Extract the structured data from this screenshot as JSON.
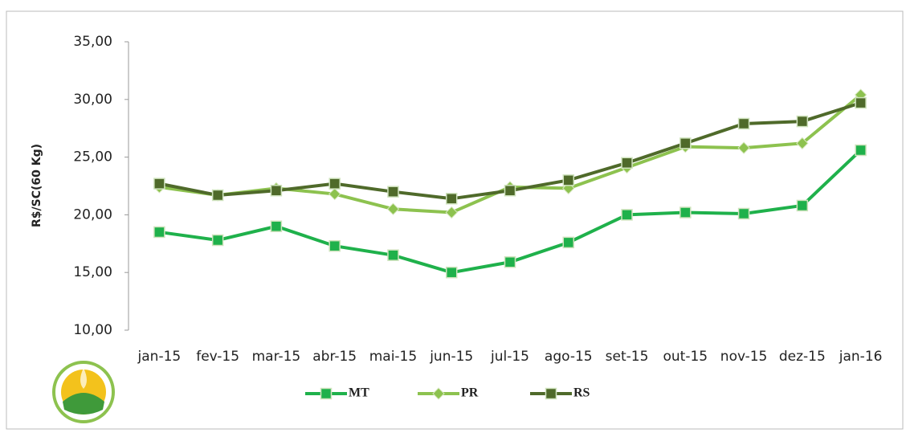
{
  "chart_data": {
    "type": "line",
    "y_label": "R$/SC(60 Kg)",
    "categories": [
      "jan-15",
      "fev-15",
      "mar-15",
      "abr-15",
      "mai-15",
      "jun-15",
      "jul-15",
      "ago-15",
      "set-15",
      "out-15",
      "nov-15",
      "dez-15",
      "jan-16"
    ],
    "series": [
      {
        "name": "MT",
        "color": "#1fb14b",
        "marker": "square",
        "values": [
          18.5,
          17.8,
          19.0,
          17.3,
          16.5,
          15.0,
          15.9,
          17.6,
          20.0,
          20.2,
          20.1,
          20.8,
          25.6
        ]
      },
      {
        "name": "PR",
        "color": "#8dc24f",
        "marker": "diamond",
        "values": [
          22.4,
          21.7,
          22.3,
          21.8,
          20.5,
          20.2,
          22.4,
          22.3,
          24.1,
          25.9,
          25.8,
          26.2,
          30.4
        ]
      },
      {
        "name": "RS",
        "color": "#4f6a2a",
        "marker": "square",
        "values": [
          22.7,
          21.7,
          22.1,
          22.7,
          22.0,
          21.4,
          22.1,
          23.0,
          24.5,
          26.2,
          27.9,
          28.1,
          29.7
        ]
      }
    ],
    "ylim": [
      10,
      35
    ],
    "yticks": [
      {
        "value": 10,
        "label": "10,00"
      },
      {
        "value": 15,
        "label": "15,00"
      },
      {
        "value": 20,
        "label": "20,00"
      },
      {
        "value": 25,
        "label": "25,00"
      },
      {
        "value": 30,
        "label": "30,00"
      },
      {
        "value": 35,
        "label": "35,00"
      }
    ],
    "legend": "bottom"
  }
}
